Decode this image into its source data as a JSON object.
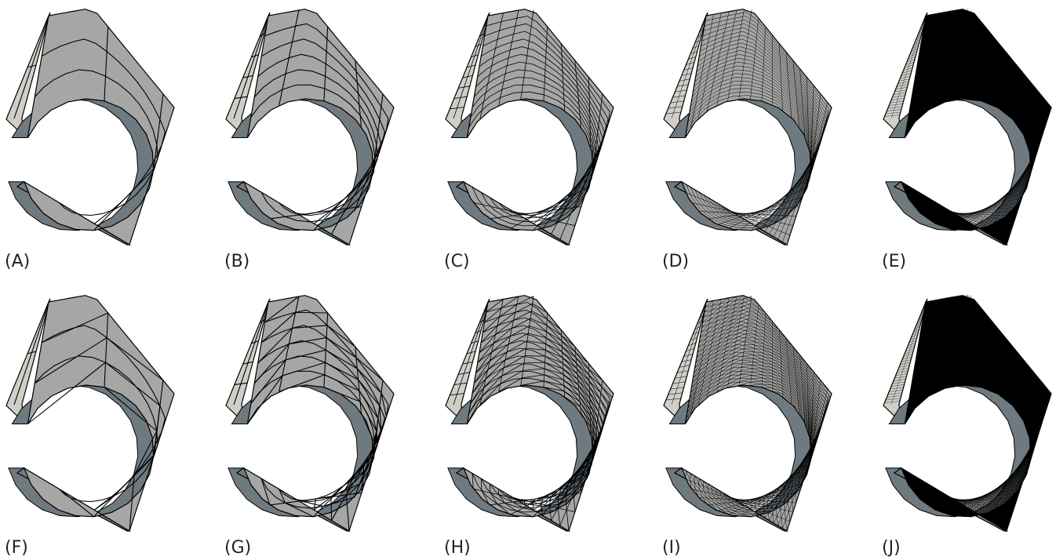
{
  "colors": {
    "face_light": "#d1cec8",
    "face_front": "#a6a7a4",
    "face_side": "#6f7980",
    "edge": "#000000"
  },
  "panels": [
    {
      "label": "(A)",
      "type": "hex",
      "n": 4
    },
    {
      "label": "(B)",
      "type": "hex",
      "n": 8
    },
    {
      "label": "(C)",
      "type": "hex",
      "n": 16
    },
    {
      "label": "(D)",
      "type": "hex",
      "n": 32
    },
    {
      "label": "(E)",
      "type": "hex",
      "n": 64
    },
    {
      "label": "(F)",
      "type": "tet",
      "n": 4
    },
    {
      "label": "(G)",
      "type": "tet",
      "n": 8
    },
    {
      "label": "(H)",
      "type": "tet",
      "n": 16
    },
    {
      "label": "(I)",
      "type": "tet",
      "n": 32
    },
    {
      "label": "(J)",
      "type": "tet",
      "n": 64
    }
  ]
}
